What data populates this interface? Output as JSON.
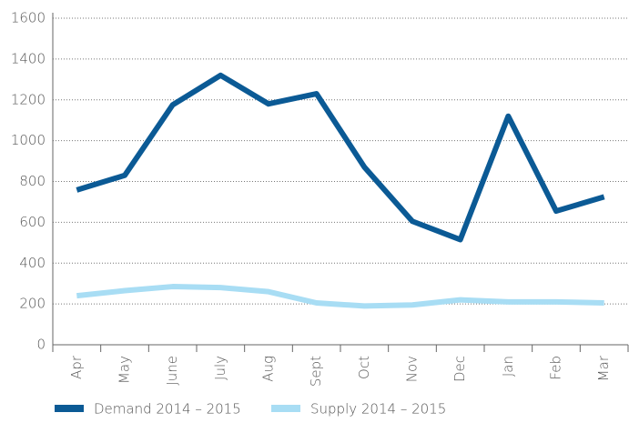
{
  "chart_data": {
    "type": "line",
    "categories": [
      "Apr",
      "May",
      "June",
      "July",
      "Aug",
      "Sept",
      "Oct",
      "Nov",
      "Dec",
      "Jan",
      "Feb",
      "Mar"
    ],
    "series": [
      {
        "name": "Demand 2014 – 2015",
        "color": "#0b5a95",
        "values": [
          758,
          830,
          1175,
          1320,
          1180,
          1230,
          870,
          605,
          515,
          1120,
          655,
          725
        ]
      },
      {
        "name": "Supply 2014 – 2015",
        "color": "#a8ddf4",
        "values": [
          240,
          265,
          285,
          280,
          260,
          205,
          190,
          195,
          220,
          210,
          210,
          205
        ]
      }
    ],
    "ylim": [
      0,
      1600
    ],
    "yticks": [
      0,
      200,
      400,
      600,
      800,
      1000,
      1200,
      1400,
      1600
    ],
    "grid": true
  }
}
